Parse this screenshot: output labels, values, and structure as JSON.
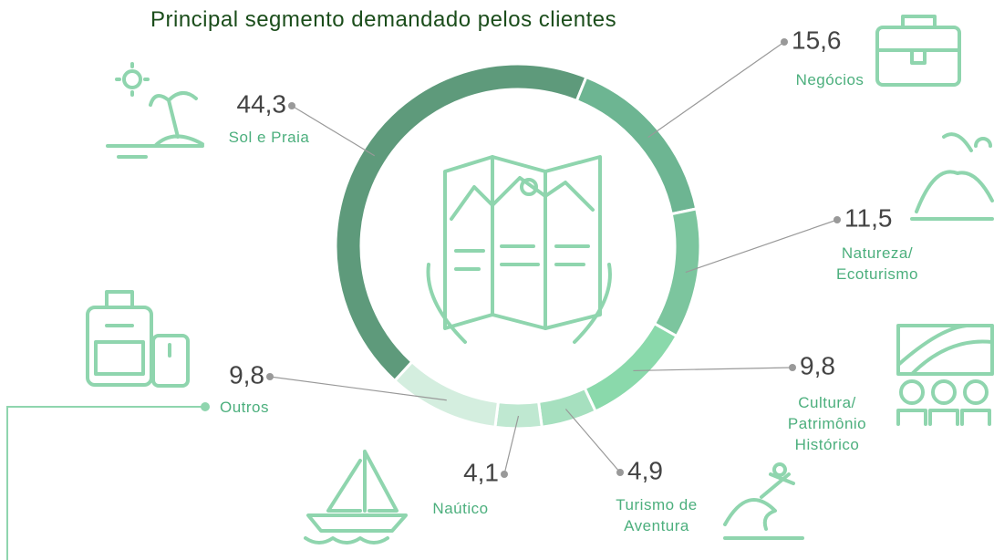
{
  "chart_data": {
    "type": "donut",
    "title": "Principal segmento demandado pelos clientes",
    "categories": [
      "Sol e Praia",
      "Negócios",
      "Natureza/\nEcoturismo",
      "Cultura/\nPatrimônio\nHistórico",
      "Turismo de\nAventura",
      "Naútico",
      "Outros"
    ],
    "values": [
      44.3,
      15.6,
      11.5,
      9.8,
      4.9,
      4.1,
      9.8
    ],
    "value_labels": [
      "44,3",
      "15,6",
      "11,5",
      "9,8",
      "4,9",
      "4,1",
      "9,8"
    ],
    "colors": [
      "#5e9a7b",
      "#6db592",
      "#7cc59e",
      "#8ad9ab",
      "#a6e0bf",
      "#bfe8d1",
      "#d4eedf"
    ]
  }
}
